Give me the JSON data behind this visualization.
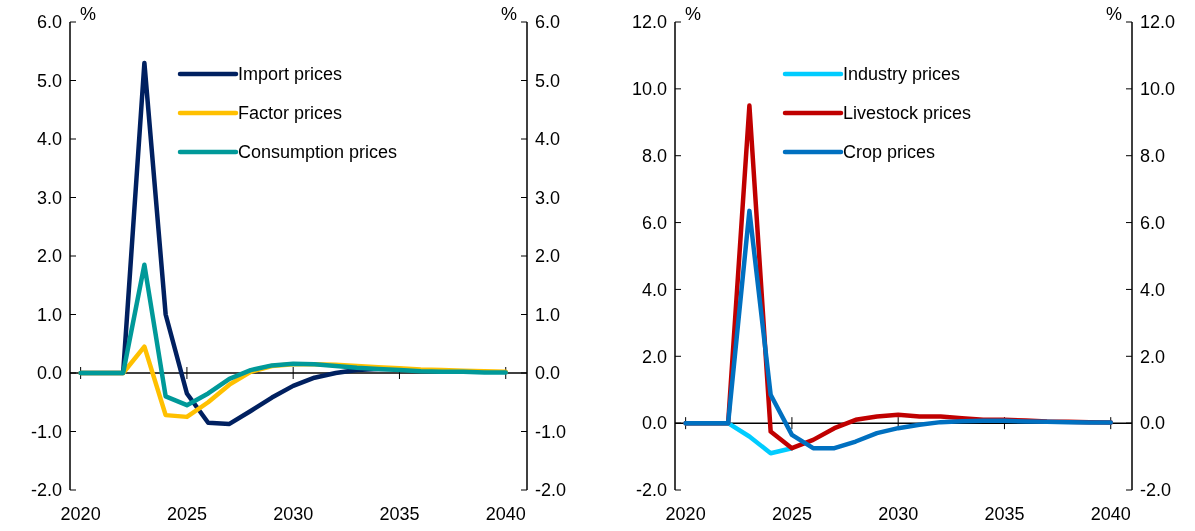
{
  "chart_data": [
    {
      "type": "line",
      "ylabel": "%",
      "y2label": "%",
      "x": [
        2020,
        2021,
        2022,
        2023,
        2024,
        2025,
        2026,
        2027,
        2028,
        2029,
        2030,
        2031,
        2032,
        2033,
        2034,
        2035,
        2036,
        2037,
        2038,
        2039,
        2040
      ],
      "xlim": [
        2019.5,
        2041
      ],
      "xticks": [
        2020,
        2025,
        2030,
        2035,
        2040
      ],
      "ylim": [
        -2,
        6
      ],
      "yticks": [
        {
          "value": -2,
          "label": "-2.0"
        },
        {
          "value": -1,
          "label": "-1.0"
        },
        {
          "value": 0,
          "label": "0.0"
        },
        {
          "value": 1,
          "label": "1.0"
        },
        {
          "value": 2,
          "label": "2.0"
        },
        {
          "value": 3,
          "label": "3.0"
        },
        {
          "value": 4,
          "label": "4.0"
        },
        {
          "value": 5,
          "label": "5.0"
        },
        {
          "value": 6,
          "label": "6.0"
        }
      ],
      "y2lim": [
        -2,
        6
      ],
      "y2ticks": [
        {
          "value": -2,
          "label": "-2.0"
        },
        {
          "value": -1,
          "label": "-1.0"
        },
        {
          "value": 0,
          "label": "0.0"
        },
        {
          "value": 1,
          "label": "1.0"
        },
        {
          "value": 2,
          "label": "2.0"
        },
        {
          "value": 3,
          "label": "3.0"
        },
        {
          "value": 4,
          "label": "4.0"
        },
        {
          "value": 5,
          "label": "5.0"
        },
        {
          "value": 6,
          "label": "6.0"
        }
      ],
      "legend": "top",
      "marker": "none",
      "line_style": "solid",
      "series": [
        {
          "name": "Import prices",
          "color": "#002060",
          "values": [
            0,
            0,
            0,
            5.3,
            1.0,
            -0.35,
            -0.85,
            -0.87,
            -0.65,
            -0.42,
            -0.22,
            -0.08,
            0.0,
            0.05,
            0.07,
            0.07,
            null,
            null,
            null,
            null,
            null
          ]
        },
        {
          "name": "Factor prices",
          "color": "#ffc000",
          "values": [
            0,
            0,
            0,
            0.45,
            -0.72,
            -0.75,
            -0.5,
            -0.2,
            0.02,
            0.12,
            0.15,
            0.15,
            0.14,
            0.12,
            0.1,
            0.08,
            0.06,
            0.05,
            0.04,
            0.03,
            0.02
          ]
        },
        {
          "name": "Consumption prices",
          "color": "#009999",
          "values": [
            0,
            0,
            0,
            1.85,
            -0.4,
            -0.55,
            -0.35,
            -0.1,
            0.05,
            0.13,
            0.16,
            0.15,
            0.12,
            0.09,
            0.07,
            0.05,
            0.03,
            0.02,
            0.02,
            0.01,
            0.01
          ]
        }
      ]
    },
    {
      "type": "line",
      "ylabel": "%",
      "y2label": "%",
      "x": [
        2020,
        2021,
        2022,
        2023,
        2024,
        2025,
        2026,
        2027,
        2028,
        2029,
        2030,
        2031,
        2032,
        2033,
        2034,
        2035,
        2036,
        2037,
        2038,
        2039,
        2040
      ],
      "xlim": [
        2019.5,
        2041
      ],
      "xticks": [
        2020,
        2025,
        2030,
        2035,
        2040
      ],
      "ylim": [
        -2,
        12
      ],
      "yticks": [
        {
          "value": -2,
          "label": "-2.0"
        },
        {
          "value": 0,
          "label": "0.0"
        },
        {
          "value": 2,
          "label": "2.0"
        },
        {
          "value": 4,
          "label": "4.0"
        },
        {
          "value": 6,
          "label": "6.0"
        },
        {
          "value": 8,
          "label": "8.0"
        },
        {
          "value": 10,
          "label": "10.0"
        },
        {
          "value": 12,
          "label": "12.0"
        }
      ],
      "y2lim": [
        -2,
        12
      ],
      "y2ticks": [
        {
          "value": -2,
          "label": "-2.0"
        },
        {
          "value": 0,
          "label": "0.0"
        },
        {
          "value": 2,
          "label": "2.0"
        },
        {
          "value": 4,
          "label": "4.0"
        },
        {
          "value": 6,
          "label": "6.0"
        },
        {
          "value": 8,
          "label": "8.0"
        },
        {
          "value": 10,
          "label": "10.0"
        },
        {
          "value": 12,
          "label": "12.0"
        }
      ],
      "legend": "top",
      "marker": "none",
      "line_style": "solid",
      "series": [
        {
          "name": "Industry prices",
          "color": "#00ccff",
          "values": [
            0,
            0,
            0,
            -0.4,
            -0.9,
            -0.75,
            null,
            null,
            null,
            null,
            null,
            null,
            null,
            null,
            null,
            null,
            null,
            null,
            null,
            null,
            null
          ]
        },
        {
          "name": "Livestock prices",
          "color": "#c00000",
          "values": [
            0,
            0,
            0,
            9.5,
            -0.25,
            -0.75,
            -0.5,
            -0.15,
            0.1,
            0.2,
            0.25,
            0.2,
            0.2,
            0.15,
            0.1,
            0.1,
            0.08,
            0.05,
            0.04,
            0.03,
            0.02
          ]
        },
        {
          "name": "Crop prices",
          "color": "#0070c0",
          "values": [
            0,
            0,
            0,
            6.35,
            0.85,
            -0.35,
            -0.75,
            -0.75,
            -0.55,
            -0.3,
            -0.15,
            -0.05,
            0.03,
            0.06,
            0.07,
            0.07,
            0.05,
            0.04,
            0.03,
            0.02,
            0.02
          ]
        }
      ]
    }
  ]
}
